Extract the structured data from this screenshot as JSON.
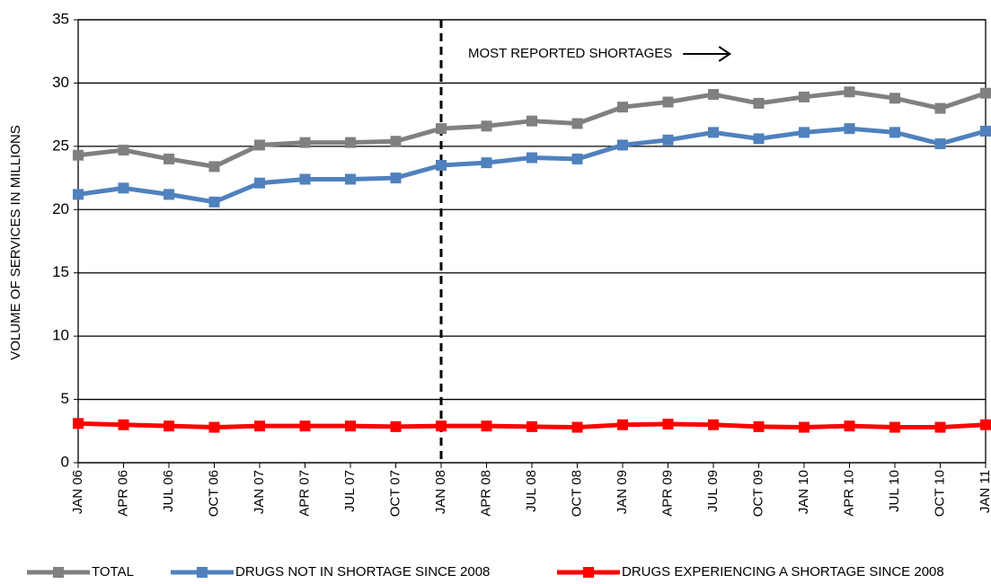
{
  "chart_data": {
    "type": "line",
    "y_axis_label": "VOLUME OF SERVICES IN MILLIONS",
    "categories": [
      "JAN 06",
      "APR 06",
      "JUL 06",
      "OCT 06",
      "JAN 07",
      "APR 07",
      "JUL 07",
      "OCT 07",
      "JAN 08",
      "APR 08",
      "JUL 08",
      "OCT 08",
      "JAN 09",
      "APR 09",
      "JUL 09",
      "OCT 09",
      "JAN 10",
      "APR 10",
      "JUL 10",
      "OCT 10",
      "JAN 11"
    ],
    "series": [
      {
        "name": "TOTAL",
        "color": "#808080",
        "values": [
          24.3,
          24.7,
          24.0,
          23.4,
          25.1,
          25.3,
          25.3,
          25.4,
          26.4,
          26.6,
          27.0,
          26.8,
          28.1,
          28.5,
          29.1,
          28.4,
          28.9,
          29.3,
          28.8,
          28.0,
          29.2
        ]
      },
      {
        "name": "DRUGS NOT IN SHORTAGE SINCE 2008",
        "color": "#4f81bd",
        "values": [
          21.2,
          21.7,
          21.2,
          20.6,
          22.1,
          22.4,
          22.4,
          22.5,
          23.5,
          23.7,
          24.1,
          24.0,
          25.1,
          25.5,
          26.1,
          25.6,
          26.1,
          26.4,
          26.1,
          25.2,
          26.2
        ]
      },
      {
        "name": "DRUGS EXPERIENCING A SHORTAGE SINCE 2008",
        "color": "#ff0000",
        "values": [
          3.1,
          3.0,
          2.9,
          2.8,
          2.9,
          2.9,
          2.9,
          2.85,
          2.9,
          2.9,
          2.85,
          2.8,
          3.0,
          3.05,
          3.0,
          2.85,
          2.8,
          2.9,
          2.8,
          2.8,
          3.0
        ]
      }
    ],
    "annotations": [
      {
        "text": "MOST REPORTED SHORTAGES",
        "x": "JAN 08"
      }
    ],
    "ylim": [
      0,
      35
    ],
    "yticks": [
      0,
      5,
      10,
      15,
      20,
      25,
      30,
      35
    ],
    "grid": true,
    "legend": "bottom"
  }
}
